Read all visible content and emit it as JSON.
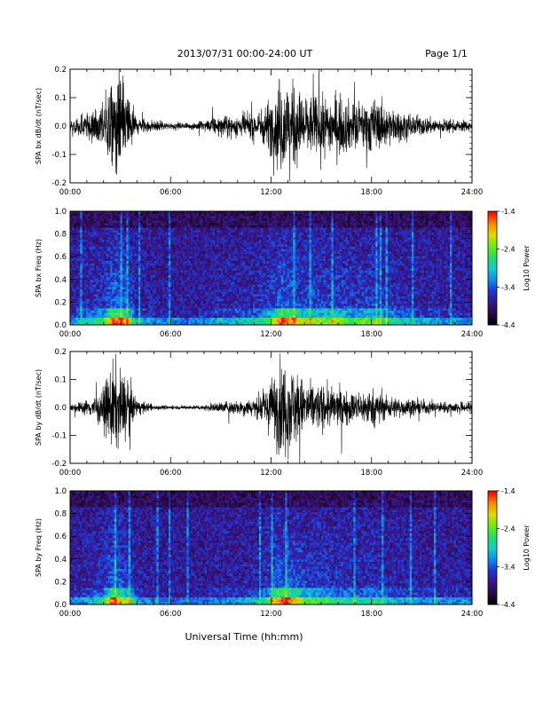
{
  "header": {
    "title": "2013/07/31   00:00-24:00 UT",
    "page": "Page 1/1"
  },
  "xlabel": "Universal Time (hh:mm)",
  "colors": {
    "trace": "#000000",
    "colormap": [
      "#000000",
      "#2a0a40",
      "#3a1380",
      "#2233cc",
      "#1188ee",
      "#11cccc",
      "#22dd66",
      "#66ee11",
      "#dddd00",
      "#ff8800",
      "#ff0000"
    ]
  },
  "chart_data": [
    {
      "type": "line",
      "ylabel": "SPA bx dB/dt (nT/sec)",
      "x_ticks": [
        "00:00",
        "06:00",
        "12:00",
        "18:00",
        "24:00"
      ],
      "y_ticks": [
        "0.2",
        "0.1",
        "0.0",
        "-0.1",
        "-0.2"
      ],
      "x_range_hours": [
        0,
        24
      ],
      "ylim": [
        -0.2,
        0.2
      ],
      "series": [
        {
          "hour": [
            0,
            1,
            2,
            2.5,
            3,
            3.5,
            4,
            5,
            6,
            7,
            8,
            9,
            10,
            11,
            11.5,
            12,
            12.5,
            13,
            13.5,
            14,
            15,
            16,
            17,
            18,
            19,
            20,
            21,
            22,
            23,
            24
          ],
          "amplitude": [
            0.03,
            0.07,
            0.12,
            0.25,
            0.25,
            0.18,
            0.05,
            0.03,
            0.02,
            0.015,
            0.03,
            0.05,
            0.06,
            0.07,
            0.1,
            0.15,
            0.25,
            0.25,
            0.2,
            0.17,
            0.15,
            0.16,
            0.12,
            0.15,
            0.1,
            0.07,
            0.05,
            0.04,
            0.03,
            0.03
          ]
        }
      ]
    },
    {
      "type": "heatmap",
      "ylabel": "SPA bx Freq (Hz)",
      "x_ticks": [
        "00:00",
        "06:00",
        "12:00",
        "18:00",
        "24:00"
      ],
      "y_ticks": [
        "1.0",
        "0.8",
        "0.6",
        "0.4",
        "0.2",
        "0.0"
      ],
      "x_range_hours": [
        0,
        24
      ],
      "ylim": [
        0,
        1.0
      ],
      "colorbar": {
        "label": "Log10 Power",
        "ticks": [
          "-1.4",
          "-2.4",
          "-3.4",
          "-4.4"
        ],
        "range": [
          -4.4,
          -1.4
        ]
      }
    },
    {
      "type": "line",
      "ylabel": "SPA by dB/dt (nT/sec)",
      "x_ticks": [
        "00:00",
        "06:00",
        "12:00",
        "18:00",
        "24:00"
      ],
      "y_ticks": [
        "0.2",
        "0.1",
        "0.0",
        "-0.1",
        "-0.2"
      ],
      "x_range_hours": [
        0,
        24
      ],
      "ylim": [
        -0.2,
        0.2
      ],
      "series": [
        {
          "hour": [
            0,
            1,
            2,
            2.5,
            3,
            3.5,
            4,
            5,
            6,
            7,
            8,
            9,
            10,
            11,
            11.5,
            12,
            12.5,
            13,
            13.5,
            14,
            15,
            16,
            17,
            18,
            19,
            20,
            21,
            22,
            23,
            24
          ],
          "amplitude": [
            0.02,
            0.04,
            0.1,
            0.25,
            0.2,
            0.15,
            0.04,
            0.015,
            0.01,
            0.01,
            0.015,
            0.03,
            0.04,
            0.05,
            0.08,
            0.15,
            0.25,
            0.25,
            0.2,
            0.14,
            0.12,
            0.1,
            0.08,
            0.1,
            0.06,
            0.05,
            0.04,
            0.03,
            0.03,
            0.03
          ]
        }
      ]
    },
    {
      "type": "heatmap",
      "ylabel": "SPA by Freq (Hz)",
      "x_ticks": [
        "00:00",
        "06:00",
        "12:00",
        "18:00",
        "24:00"
      ],
      "y_ticks": [
        "1.0",
        "0.8",
        "0.6",
        "0.4",
        "0.2",
        "0.0"
      ],
      "x_range_hours": [
        0,
        24
      ],
      "ylim": [
        0,
        1.0
      ],
      "colorbar": {
        "label": "Log10 Power",
        "ticks": [
          "-1.4",
          "-2.4",
          "-3.4",
          "-4.4"
        ],
        "range": [
          -4.4,
          -1.4
        ]
      }
    }
  ]
}
